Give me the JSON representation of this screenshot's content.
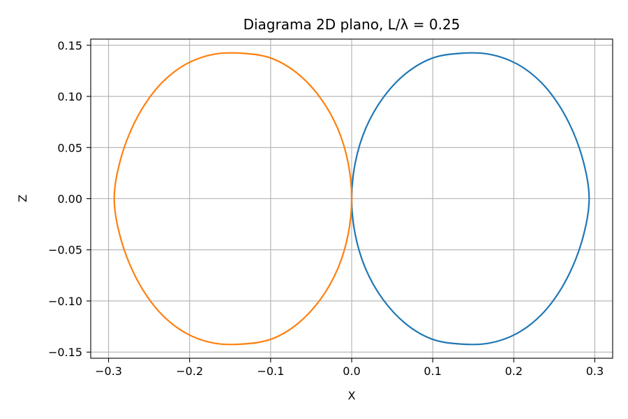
{
  "chart_data": {
    "type": "line",
    "title": "Diagrama 2D plano, L/λ = 0.25",
    "xlabel": "X",
    "ylabel": "Z",
    "xlim": [
      -0.322,
      0.322
    ],
    "ylim": [
      -0.156,
      0.156
    ],
    "x_ticks": [
      -0.3,
      -0.2,
      -0.1,
      0.0,
      0.1,
      0.2,
      0.3
    ],
    "x_tick_labels": [
      "−0.3",
      "−0.2",
      "−0.1",
      "0.0",
      "0.1",
      "0.2",
      "0.3"
    ],
    "y_ticks": [
      0.15,
      0.1,
      0.05,
      0.0,
      -0.05,
      -0.1,
      -0.15
    ],
    "y_tick_labels": [
      "0.15",
      "0.10",
      "0.05",
      "0.00",
      "−0.05",
      "−0.10",
      "−0.15"
    ],
    "grid": true,
    "series": [
      {
        "color": "#1f77b4",
        "points": [
          [
            0.0,
            0.0
          ],
          [
            0.0045,
            0.0355
          ],
          [
            0.0174,
            0.0689
          ],
          [
            0.0386,
            0.0985
          ],
          [
            0.0664,
            0.1221
          ],
          [
            0.0988,
            0.1372
          ],
          [
            0.134,
            0.1421
          ],
          [
            0.17,
            0.1412
          ],
          [
            0.204,
            0.1317
          ],
          [
            0.234,
            0.1135
          ],
          [
            0.2585,
            0.088
          ],
          [
            0.2772,
            0.0576
          ],
          [
            0.289,
            0.026
          ],
          [
            0.293,
            0.0
          ],
          [
            0.289,
            -0.026
          ],
          [
            0.2772,
            -0.0576
          ],
          [
            0.2585,
            -0.088
          ],
          [
            0.234,
            -0.1135
          ],
          [
            0.204,
            -0.1317
          ],
          [
            0.17,
            -0.1412
          ],
          [
            0.134,
            -0.1421
          ],
          [
            0.0988,
            -0.1372
          ],
          [
            0.0664,
            -0.1221
          ],
          [
            0.0386,
            -0.0985
          ],
          [
            0.0174,
            -0.0689
          ],
          [
            0.0045,
            -0.0355
          ],
          [
            0.0,
            0.0
          ]
        ]
      },
      {
        "color": "#ff7f0e",
        "points": [
          [
            0.0,
            0.0
          ],
          [
            -0.0045,
            0.0355
          ],
          [
            -0.0174,
            0.0689
          ],
          [
            -0.0386,
            0.0985
          ],
          [
            -0.0664,
            0.1221
          ],
          [
            -0.0988,
            0.1372
          ],
          [
            -0.134,
            0.1421
          ],
          [
            -0.17,
            0.1412
          ],
          [
            -0.204,
            0.1317
          ],
          [
            -0.234,
            0.1135
          ],
          [
            -0.2585,
            0.088
          ],
          [
            -0.2772,
            0.0576
          ],
          [
            -0.289,
            0.026
          ],
          [
            -0.293,
            0.0
          ],
          [
            -0.289,
            -0.026
          ],
          [
            -0.2772,
            -0.0576
          ],
          [
            -0.2585,
            -0.088
          ],
          [
            -0.234,
            -0.1135
          ],
          [
            -0.204,
            -0.1317
          ],
          [
            -0.17,
            -0.1412
          ],
          [
            -0.134,
            -0.1421
          ],
          [
            -0.0988,
            -0.1372
          ],
          [
            -0.0664,
            -0.1221
          ],
          [
            -0.0386,
            -0.0985
          ],
          [
            -0.0174,
            -0.0689
          ],
          [
            -0.0045,
            -0.0355
          ],
          [
            0.0,
            0.0
          ]
        ]
      }
    ]
  }
}
